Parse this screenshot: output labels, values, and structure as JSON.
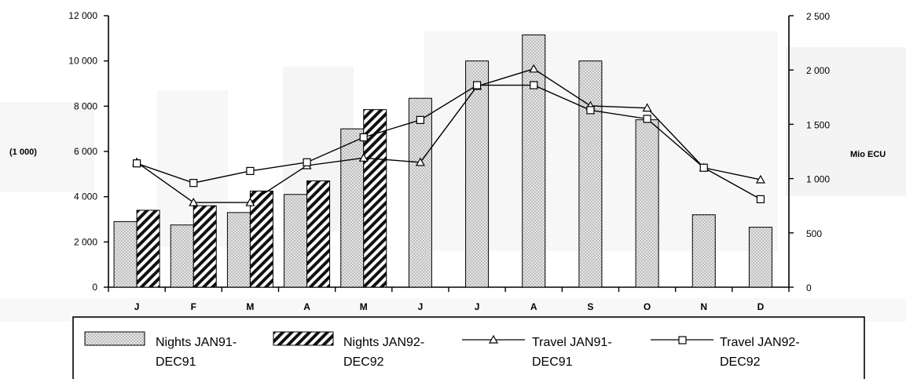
{
  "chart_data": {
    "type": "bar",
    "categories": [
      "J",
      "F",
      "M",
      "A",
      "M",
      "J",
      "J",
      "A",
      "S",
      "O",
      "N",
      "D"
    ],
    "left_axis": {
      "label": "(1 000)",
      "ylim": [
        0,
        12000
      ],
      "ticks": [
        0,
        2000,
        4000,
        6000,
        8000,
        10000,
        12000
      ],
      "tick_labels": [
        "0",
        "2 000",
        "4 000",
        "6 000",
        "8 000",
        "10 000",
        "12 000"
      ]
    },
    "right_axis": {
      "label": "Mio ECU",
      "ylim": [
        0,
        2500
      ],
      "ticks": [
        0,
        500,
        1000,
        1500,
        2000,
        2500
      ],
      "tick_labels": [
        "0",
        "500",
        "1 000",
        "1 500",
        "2 000",
        "2 500"
      ]
    },
    "series": [
      {
        "name": "Nights JAN91-DEC91",
        "kind": "bar",
        "axis": "left",
        "style": "dotted",
        "values": [
          2900,
          2750,
          3300,
          4100,
          7000,
          8350,
          10000,
          11150,
          10000,
          7400,
          3200,
          2650
        ]
      },
      {
        "name": "Nights JAN92-DEC92",
        "kind": "bar",
        "axis": "left",
        "style": "hatched",
        "values": [
          3400,
          3600,
          4250,
          4700,
          7850,
          null,
          null,
          null,
          null,
          null,
          null,
          null
        ]
      },
      {
        "name": "Travel JAN91-DEC91",
        "kind": "line",
        "axis": "right",
        "marker": "triangle",
        "values": [
          1150,
          780,
          780,
          1120,
          1190,
          1150,
          1850,
          2010,
          1670,
          1650,
          1100,
          990
        ]
      },
      {
        "name": "Travel JAN92-DEC92",
        "kind": "line",
        "axis": "right",
        "marker": "square",
        "values": [
          1140,
          960,
          1070,
          1150,
          1380,
          1540,
          1860,
          1860,
          1630,
          1550,
          1100,
          810
        ]
      }
    ],
    "legend": {
      "placement": "bottom",
      "entries": [
        {
          "line1": "Nights JAN91-",
          "line2": "DEC91"
        },
        {
          "line1": "Nights JAN92-",
          "line2": "DEC92"
        },
        {
          "line1": "Travel JAN91-",
          "line2": "DEC91"
        },
        {
          "line1": "Travel JAN92-",
          "line2": "DEC92"
        }
      ]
    },
    "grid": false
  },
  "colors": {
    "axis": "#000000",
    "background": "#ffffff",
    "panel_shade": "#f2f2f2",
    "dotted_fill": "#e4e4e4",
    "dot_color": "#8a8a8a",
    "hatch_color": "#111111"
  }
}
